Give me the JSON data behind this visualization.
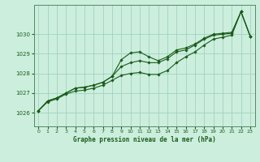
{
  "title": "Graphe pression niveau de la mer (hPa)",
  "background_color": "#cceedd",
  "grid_color": "#99ccbb",
  "line_color": "#1a5c1a",
  "marker_color": "#1a5c1a",
  "xlim": [
    -0.5,
    23.5
  ],
  "ylim": [
    1025.3,
    1031.5
  ],
  "xticks": [
    0,
    1,
    2,
    3,
    4,
    5,
    6,
    7,
    8,
    9,
    10,
    11,
    12,
    13,
    14,
    15,
    16,
    17,
    18,
    19,
    20,
    21,
    22,
    23
  ],
  "yticks": [
    1026,
    1027,
    1028,
    1029,
    1030
  ],
  "series": [
    [
      1026.1,
      1026.6,
      1026.75,
      1027.0,
      1027.25,
      1027.3,
      1027.4,
      1027.55,
      1027.85,
      1028.7,
      1029.05,
      1029.1,
      1028.85,
      1028.65,
      1028.85,
      1029.2,
      1029.3,
      1029.5,
      1029.8,
      1030.0,
      1030.05,
      1030.1,
      1031.15,
      1029.9
    ],
    [
      1026.1,
      1026.6,
      1026.75,
      1027.0,
      1027.25,
      1027.3,
      1027.4,
      1027.55,
      1027.85,
      1028.35,
      1028.55,
      1028.65,
      1028.55,
      1028.55,
      1028.75,
      1029.1,
      1029.2,
      1029.45,
      1029.75,
      1029.95,
      1030.0,
      1030.05,
      1031.15,
      1029.9
    ],
    [
      1026.1,
      1026.55,
      1026.7,
      1026.95,
      1027.1,
      1027.15,
      1027.25,
      1027.4,
      1027.65,
      1027.9,
      1028.0,
      1028.05,
      1027.95,
      1027.95,
      1028.15,
      1028.55,
      1028.85,
      1029.1,
      1029.45,
      1029.75,
      1029.85,
      1029.95,
      1031.15,
      1029.9
    ]
  ]
}
